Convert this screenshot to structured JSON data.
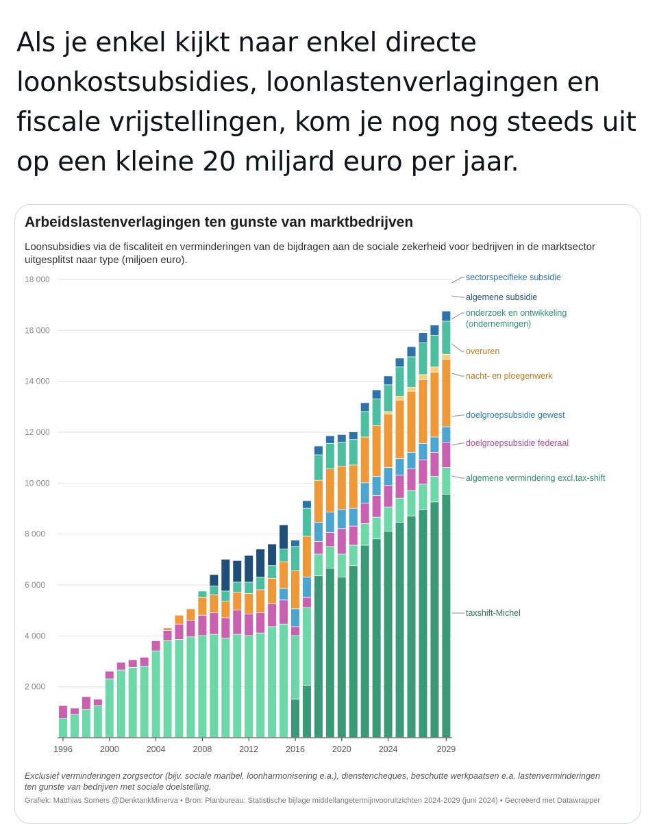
{
  "tweet": {
    "text": "Als je enkel kijkt naar enkel directe loonkostsubsidies, loonlastenverlagingen en fiscale vrijstellingen, kom je nog nog steeds uit op een kleine 20 miljard euro per jaar."
  },
  "chart_data": {
    "type": "bar",
    "stacked": true,
    "title": "Arbeidslastenverlagingen ten gunste van marktbedrijven",
    "subtitle": "Loonsubsidies via de fiscaliteit en verminderingen van de bijdragen aan de sociale zekerheid voor bedrijven in de marktsector uitgesplitst naar type (miljoen euro).",
    "ylim": [
      0,
      18000
    ],
    "yticks": [
      2000,
      4000,
      6000,
      8000,
      10000,
      12000,
      14000,
      16000,
      18000
    ],
    "ytick_labels": [
      "2 000",
      "4 000",
      "6 000",
      "8 000",
      "10 000",
      "12 000",
      "14 000",
      "16 000",
      "18 000"
    ],
    "xtick_labels": [
      "1996",
      "2000",
      "2004",
      "2008",
      "2012",
      "2016",
      "2020",
      "2024",
      "2029"
    ],
    "xtick_years": [
      1996,
      2000,
      2004,
      2008,
      2012,
      2016,
      2020,
      2024,
      2029
    ],
    "grid": true,
    "legend_placement": "right, labels next to top bar",
    "categories": [
      "1996",
      "1997",
      "1998",
      "1999",
      "2000",
      "2001",
      "2002",
      "2003",
      "2004",
      "2005",
      "2006",
      "2007",
      "2008",
      "2009",
      "2010",
      "2011",
      "2012",
      "2013",
      "2014",
      "2015",
      "2016",
      "2017",
      "2018",
      "2019",
      "2020",
      "2021",
      "2022",
      "2023",
      "2024",
      "2025",
      "2026",
      "2027",
      "2028",
      "2029"
    ],
    "series": [
      {
        "name": "taxshift-Michel",
        "color": "#3a9a78",
        "values": [
          0,
          0,
          0,
          0,
          0,
          0,
          0,
          0,
          0,
          0,
          0,
          0,
          0,
          0,
          0,
          0,
          0,
          0,
          0,
          0,
          1500,
          2050,
          6350,
          6650,
          6300,
          6750,
          7550,
          7800,
          8100,
          8450,
          8700,
          8950,
          9250,
          9550
        ]
      },
      {
        "name": "algemene vermindering excl.tax-shift",
        "color": "#6cd8a8",
        "values": [
          750,
          900,
          1100,
          1250,
          2300,
          2650,
          2750,
          2800,
          3400,
          3800,
          3850,
          3950,
          4000,
          4050,
          3900,
          4050,
          4000,
          4100,
          4350,
          4450,
          2500,
          3050,
          850,
          850,
          900,
          800,
          850,
          850,
          950,
          950,
          1000,
          1000,
          1000,
          1050
        ]
      },
      {
        "name": "doelgroepsubsidie federaal",
        "color": "#c960b0",
        "values": [
          500,
          250,
          500,
          250,
          300,
          300,
          300,
          350,
          400,
          400,
          600,
          650,
          800,
          850,
          800,
          950,
          850,
          800,
          900,
          950,
          350,
          400,
          500,
          550,
          1000,
          750,
          800,
          850,
          850,
          900,
          850,
          950,
          950,
          1000
        ]
      },
      {
        "name": "doelgroepsubsidie gewest",
        "color": "#4aa6d1",
        "values": [
          0,
          0,
          0,
          0,
          0,
          0,
          0,
          0,
          0,
          0,
          0,
          0,
          0,
          0,
          0,
          0,
          0,
          0,
          0,
          450,
          700,
          800,
          750,
          800,
          750,
          700,
          800,
          750,
          700,
          650,
          650,
          650,
          600,
          600
        ]
      },
      {
        "name": "nacht- en ploegenwerk",
        "color": "#ee9838",
        "values": [
          0,
          0,
          0,
          0,
          0,
          0,
          0,
          0,
          0,
          100,
          350,
          450,
          700,
          700,
          650,
          700,
          800,
          900,
          1000,
          1050,
          1500,
          1600,
          1650,
          1700,
          1700,
          1700,
          1800,
          2000,
          2100,
          2300,
          2400,
          2500,
          2550,
          2650
        ]
      },
      {
        "name": "overuren",
        "color": "#f5d07a",
        "values": [
          0,
          0,
          0,
          0,
          0,
          0,
          0,
          0,
          0,
          0,
          0,
          0,
          0,
          0,
          0,
          0,
          0,
          0,
          0,
          0,
          0,
          0,
          0,
          0,
          0,
          0,
          0,
          0,
          100,
          150,
          150,
          200,
          200,
          200
        ]
      },
      {
        "name": "onderzoek en ontwikkeling (ondernemingen)",
        "color": "#4cbfa0",
        "values": [
          0,
          0,
          0,
          0,
          0,
          0,
          0,
          0,
          0,
          0,
          0,
          0,
          250,
          350,
          400,
          400,
          450,
          500,
          500,
          500,
          950,
          1100,
          1000,
          1000,
          950,
          1000,
          1000,
          1050,
          1050,
          1150,
          1200,
          1250,
          1250,
          1300
        ]
      },
      {
        "name": "algemene subsidie",
        "color": "#1f4f78",
        "values": [
          0,
          0,
          0,
          0,
          0,
          0,
          0,
          0,
          0,
          0,
          0,
          0,
          0,
          450,
          1250,
          850,
          1050,
          1100,
          850,
          950,
          0,
          0,
          0,
          0,
          0,
          0,
          0,
          0,
          0,
          0,
          0,
          0,
          0,
          0
        ]
      },
      {
        "name": "sectorspecifieke subsidie",
        "color": "#2d72a8",
        "values": [
          0,
          0,
          0,
          0,
          0,
          0,
          0,
          0,
          0,
          0,
          0,
          0,
          0,
          0,
          0,
          0,
          0,
          0,
          0,
          0,
          250,
          300,
          350,
          300,
          300,
          300,
          350,
          350,
          350,
          350,
          400,
          400,
          400,
          400
        ]
      }
    ],
    "legend": [
      "sectorspecifieke subsidie",
      "algemene subsidie",
      "onderzoek en ontwikkeling",
      "(ondernemingen)",
      "overuren",
      "nacht- en ploegenwerk",
      "doelgroepsubsidie gewest",
      "doelgroepsubsidie federaal",
      "algemene vermindering excl.tax-shift",
      "taxshift-Michel"
    ],
    "legend_colors": [
      "#2d72a8",
      "#1f4f78",
      "#2f8f78",
      "#2f8f78",
      "#c07b1a",
      "#c07b1a",
      "#2d7fae",
      "#b04a98",
      "#2f8f6c",
      "#2f6f58"
    ],
    "footnote": "Exclusief verminderingen zorgsector (bijv. sociale maribel, loonharmonisering e.a.), dienstencheques, beschutte werkpaatsen e.a. lastenverminderingen ten gunste van bedrijven met sociale doelstelling.",
    "credit": "Grafiek: Matthias Somers @DenktankMinerva • Bron: Planbureau: Statistische bijlage middellangetermijnvooruitzichten 2024-2029 (juni 2024) • Gecreëerd met Datawrapper"
  }
}
